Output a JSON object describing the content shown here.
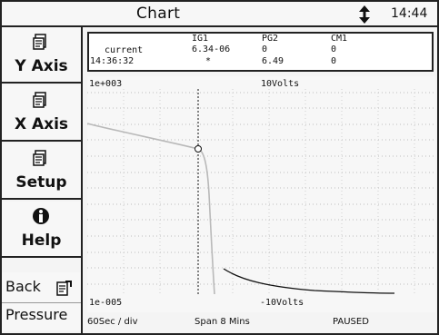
{
  "titlebar": {
    "title": "Chart",
    "time": "14:44",
    "scroll_icon": "up-down-arrow-icon"
  },
  "sidebar": {
    "buttons": [
      {
        "label": "Y Axis",
        "icon": "document-icon"
      },
      {
        "label": "X Axis",
        "icon": "document-icon"
      },
      {
        "label": "Setup",
        "icon": "document-icon"
      },
      {
        "label": "Help",
        "icon": "info-icon"
      }
    ],
    "back": {
      "label": "Back",
      "sub_label": "Pressure",
      "icon": "document-return-icon"
    }
  },
  "readings": {
    "row1_label": "current",
    "row2_label": "14:36:32",
    "columns": [
      {
        "name": "IG1",
        "current": "6.34-06",
        "cursor": "*"
      },
      {
        "name": "PG2",
        "current": "0",
        "cursor": "6.49"
      },
      {
        "name": "CM1",
        "current": "0",
        "cursor": "0"
      }
    ]
  },
  "chart": {
    "y_top": "1e+003",
    "y_bottom": "1e-005",
    "right_top": "10Volts",
    "right_bottom": "-10Volts"
  },
  "status": {
    "x_scale": "60Sec / div",
    "span": "Span 8 Mins",
    "state": "PAUSED"
  }
}
